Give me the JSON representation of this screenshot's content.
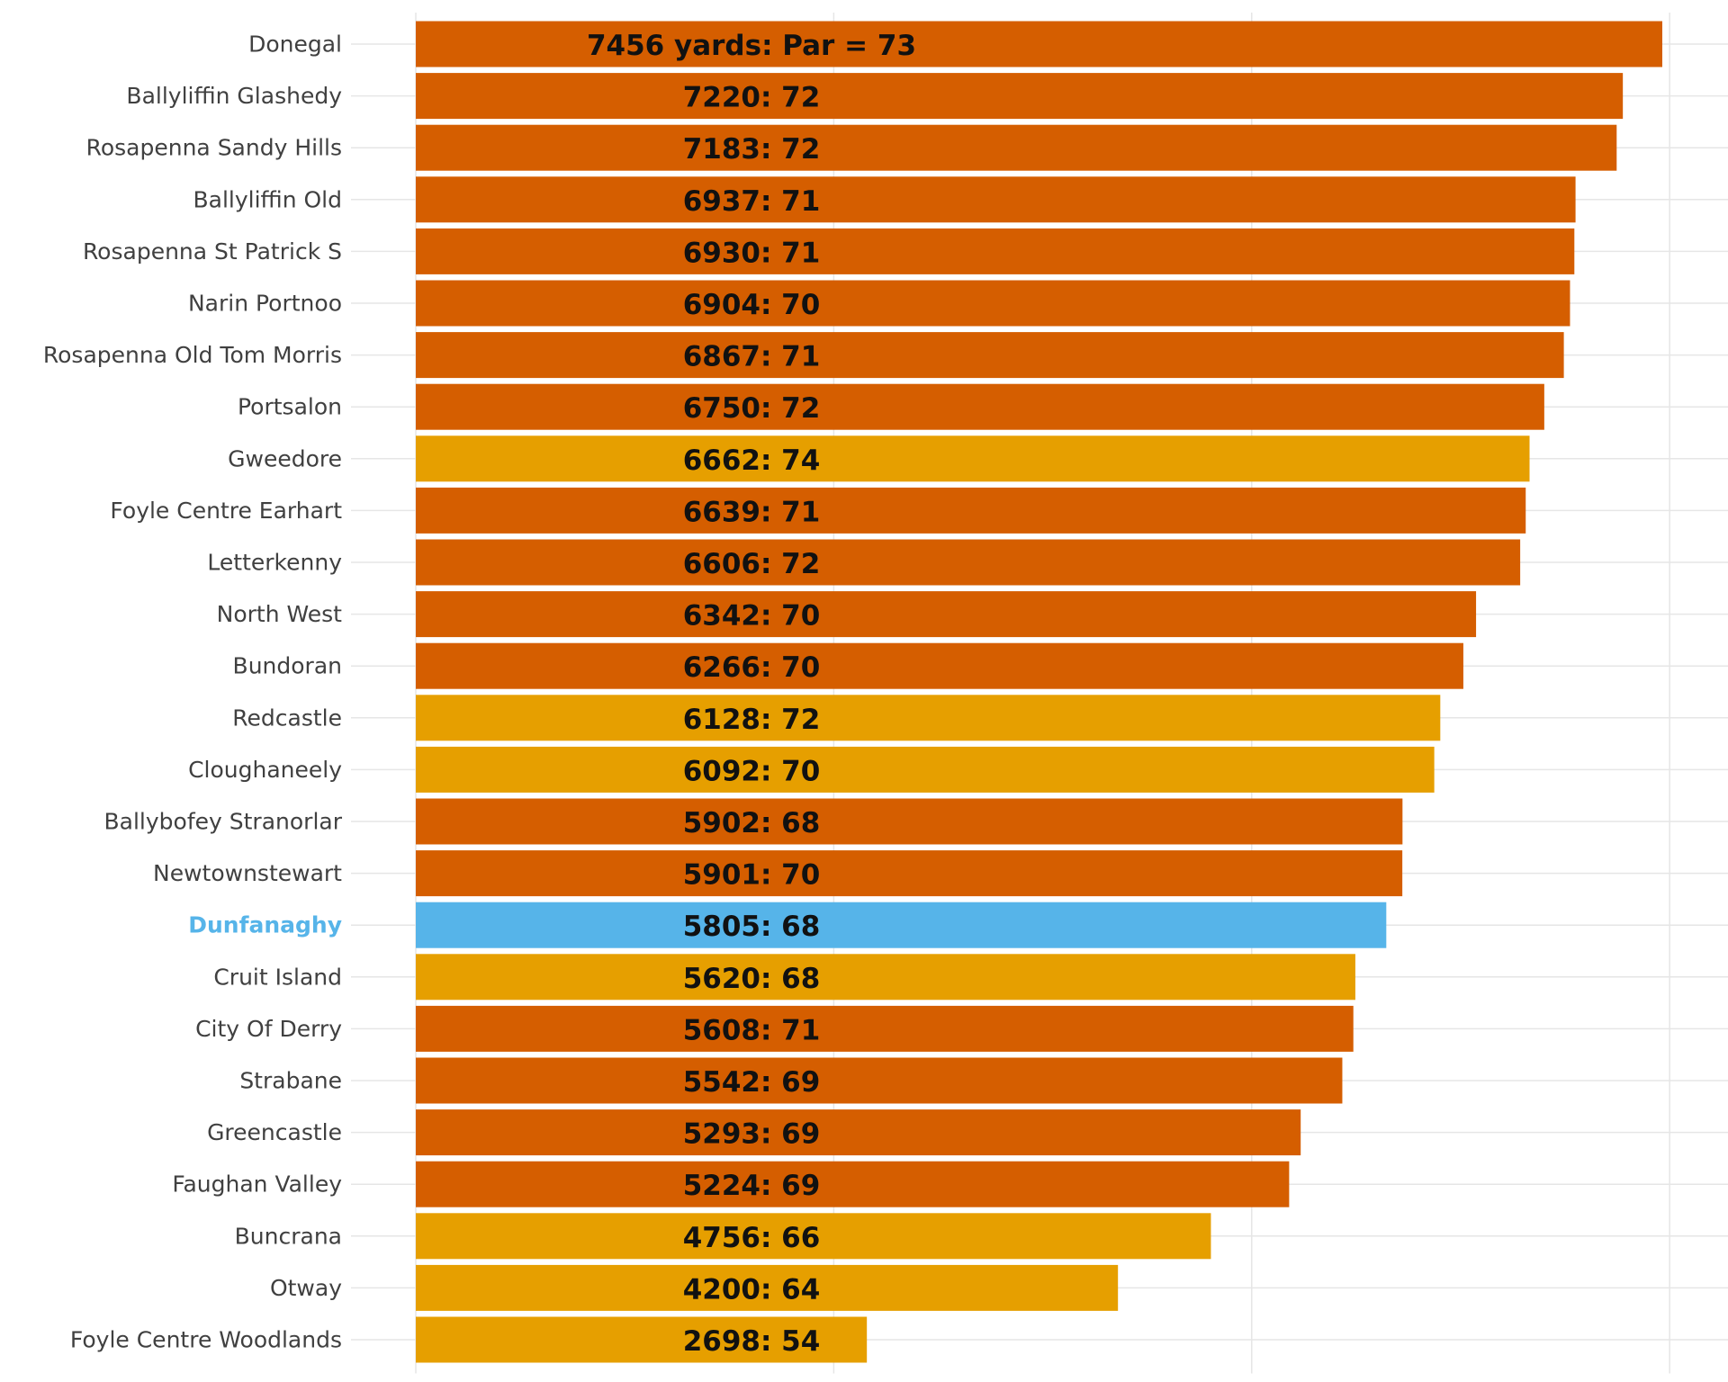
{
  "chart_data": {
    "type": "bar",
    "orientation": "horizontal",
    "title": "",
    "xlabel": "",
    "ylabel": "",
    "xlim": [
      0,
      7600
    ],
    "grid": true,
    "legend": "none",
    "colors": {
      "dark_orange": "#d55e00",
      "light_orange": "#e69f00",
      "highlight": "#56b4e9"
    },
    "highlight_category": "Dunfanaghy",
    "categories": [
      "Donegal",
      "Ballyliffin Glashedy",
      "Rosapenna Sandy Hills",
      "Ballyliffin Old",
      "Rosapenna St Patrick S",
      "Narin Portnoo",
      "Rosapenna Old Tom Morris",
      "Portsalon",
      "Gweedore",
      "Foyle Centre Earhart",
      "Letterkenny",
      "North West",
      "Bundoran",
      "Redcastle",
      "Cloughaneely",
      "Ballybofey Stranorlar",
      "Newtownstewart",
      "Dunfanaghy",
      "Cruit Island",
      "City Of Derry",
      "Strabane",
      "Greencastle",
      "Faughan Valley",
      "Buncrana",
      "Otway",
      "Foyle Centre Woodlands"
    ],
    "values": [
      7456,
      7220,
      7183,
      6937,
      6930,
      6904,
      6867,
      6750,
      6662,
      6639,
      6606,
      6342,
      6266,
      6128,
      6092,
      5902,
      5901,
      5805,
      5620,
      5608,
      5542,
      5293,
      5224,
      4756,
      4200,
      2698
    ],
    "par": [
      73,
      72,
      72,
      71,
      71,
      70,
      71,
      72,
      74,
      71,
      72,
      70,
      70,
      72,
      70,
      68,
      70,
      68,
      68,
      71,
      69,
      69,
      69,
      66,
      64,
      54
    ],
    "bar_color": [
      "dark_orange",
      "dark_orange",
      "dark_orange",
      "dark_orange",
      "dark_orange",
      "dark_orange",
      "dark_orange",
      "dark_orange",
      "light_orange",
      "dark_orange",
      "dark_orange",
      "dark_orange",
      "dark_orange",
      "light_orange",
      "light_orange",
      "dark_orange",
      "dark_orange",
      "highlight",
      "light_orange",
      "dark_orange",
      "dark_orange",
      "dark_orange",
      "dark_orange",
      "light_orange",
      "light_orange",
      "light_orange"
    ],
    "bar_labels": [
      "7456 yards: Par = 73",
      "7220: 72",
      "7183: 72",
      "6937: 71",
      "6930: 71",
      "6904: 70",
      "6867: 71",
      "6750: 72",
      "6662: 74",
      "6639: 71",
      "6606: 72",
      "6342: 70",
      "6266: 70",
      "6128: 72",
      "6092: 70",
      "5902: 68",
      "5901: 70",
      "5805: 68",
      "5620: 68",
      "5608: 71",
      "5542: 69",
      "5293: 69",
      "5224: 69",
      "4756: 66",
      "4200: 64",
      "2698: 54"
    ]
  }
}
